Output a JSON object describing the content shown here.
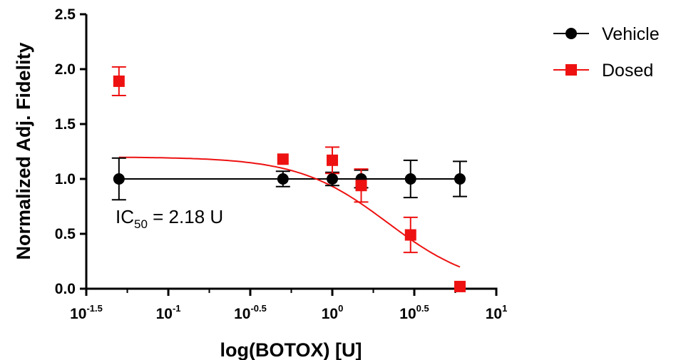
{
  "chart_data": {
    "type": "scatter",
    "xscale": "log10",
    "xlabel": "log(BOTOX) [U]",
    "ylabel": "Normalized Adj. Fidelity",
    "xlim": [
      0.0316,
      10
    ],
    "ylim": [
      0,
      2.5
    ],
    "x_ticks": [
      {
        "base": "10",
        "exp": "-1.5",
        "value": 0.0316
      },
      {
        "base": "10",
        "exp": "-1",
        "value": 0.1
      },
      {
        "base": "10",
        "exp": "-0.5",
        "value": 0.316
      },
      {
        "base": "10",
        "exp": "0",
        "value": 1
      },
      {
        "base": "10",
        "exp": "0.5",
        "value": 3.162
      },
      {
        "base": "10",
        "exp": "1",
        "value": 10
      }
    ],
    "y_ticks": [
      "0.0",
      "0.5",
      "1.0",
      "1.5",
      "2.0",
      "2.5"
    ],
    "legend_position": "top-right",
    "series": [
      {
        "name": "Vehicle",
        "color": "#000000",
        "marker": "circle",
        "x": [
          0.05,
          0.5,
          1.0,
          1.5,
          3.0,
          6.0
        ],
        "y": [
          1.0,
          1.0,
          1.0,
          1.0,
          1.0,
          1.0
        ],
        "err": [
          0.19,
          0.07,
          0.06,
          0.08,
          0.17,
          0.16
        ],
        "fit_line": {
          "type": "horizontal",
          "y": 1.0,
          "x_range": [
            0.05,
            6.0
          ]
        }
      },
      {
        "name": "Dosed",
        "color": "#ee1111",
        "marker": "square",
        "x": [
          0.05,
          0.5,
          1.0,
          1.5,
          3.0,
          6.0
        ],
        "y": [
          1.89,
          1.18,
          1.17,
          0.94,
          0.49,
          0.02
        ],
        "err": [
          0.13,
          0.0,
          0.12,
          0.15,
          0.16,
          0.0
        ],
        "fit_line": {
          "type": "sigmoid",
          "top": 1.2,
          "bottom": 0.0,
          "ic50": 2.18,
          "hill": 1.6,
          "x_range": [
            0.05,
            6.0
          ]
        }
      }
    ],
    "annotation": {
      "prefix": "IC",
      "subscript": "50",
      "suffix": " = 2.18 U"
    }
  }
}
